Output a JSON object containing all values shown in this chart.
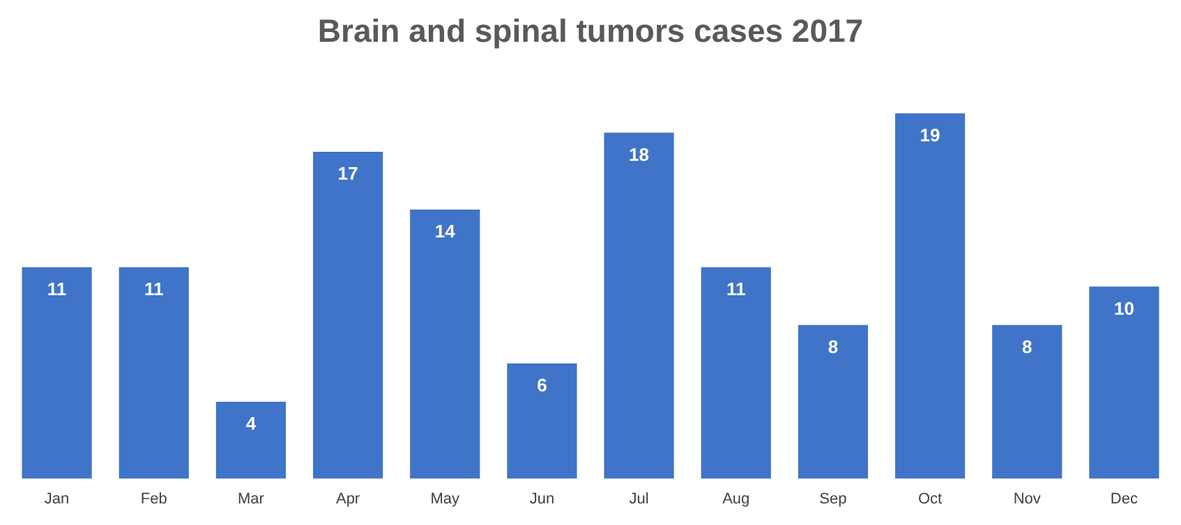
{
  "chart_data": {
    "type": "bar",
    "title": "Brain and spinal tumors cases 2017",
    "categories": [
      "Jan",
      "Feb",
      "Mar",
      "Apr",
      "May",
      "Jun",
      "Jul",
      "Aug",
      "Sep",
      "Oct",
      "Nov",
      "Dec"
    ],
    "values": [
      11,
      11,
      4,
      17,
      14,
      6,
      18,
      11,
      8,
      19,
      8,
      10
    ],
    "color": "#4074c8",
    "data_labels": true,
    "grid": false,
    "legend": false
  }
}
